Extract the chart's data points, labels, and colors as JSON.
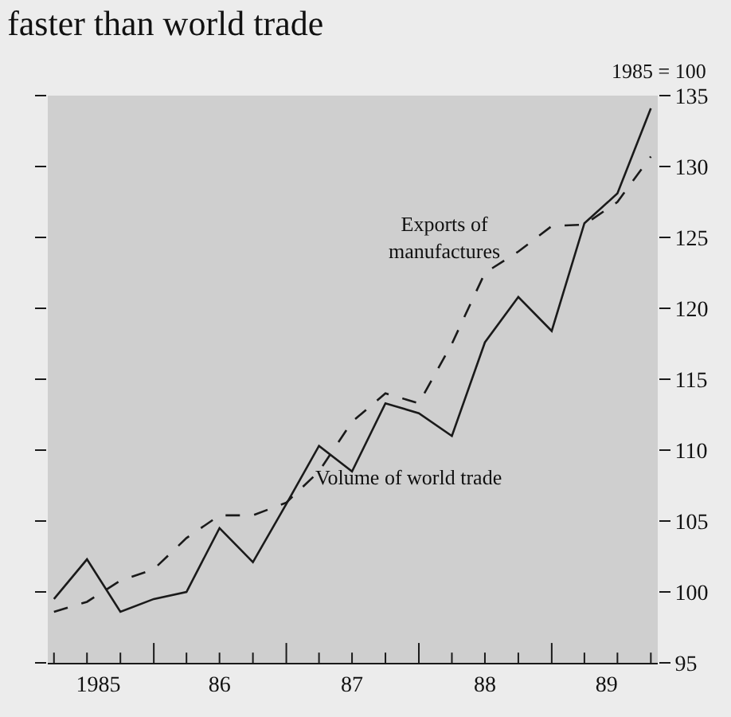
{
  "chart_data": {
    "type": "line",
    "title": "faster than world trade",
    "subtitle": "1985 = 100",
    "x": [
      "1985-04",
      "1985-07",
      "1985-10",
      "1986-01",
      "1986-04",
      "1986-07",
      "1986-10",
      "1987-01",
      "1987-04",
      "1987-07",
      "1987-10",
      "1988-01",
      "1988-04",
      "1988-07",
      "1988-10",
      "1989-01",
      "1989-04",
      "1989-07",
      "1989-10"
    ],
    "series": [
      {
        "color": "#1a1a1a",
        "line_style": "dashed",
        "values": [
          98.6,
          99.3,
          100.8,
          101.6,
          103.8,
          105.4,
          105.4,
          106.3,
          108.5,
          112.0,
          114.0,
          113.3,
          117.5,
          122.5,
          124.0,
          125.8,
          125.9,
          127.5,
          130.7
        ]
      },
      {
        "color": "#1a1a1a",
        "line_style": "solid",
        "values": [
          99.5,
          102.3,
          98.6,
          99.5,
          100.0,
          104.5,
          102.1,
          106.2,
          110.3,
          108.5,
          113.3,
          112.6,
          111.0,
          117.6,
          120.8,
          118.4,
          126.0,
          128.1,
          134.1
        ]
      }
    ],
    "annotations": [
      "Exports of\nmanufactures",
      "Volume of world trade"
    ],
    "xlim": [
      "1985-03-15",
      "1989-10-20"
    ],
    "ylim": [
      95,
      135
    ],
    "xticks": [
      {
        "value": "1985-04",
        "label": null
      },
      {
        "value": "1985-07",
        "label": null
      },
      {
        "value": "1985-10",
        "label": null
      },
      {
        "value": "1986-01",
        "label": null
      },
      {
        "value": "1986-04",
        "label": null
      },
      {
        "value": "1986-07",
        "label": null
      },
      {
        "value": "1986-10",
        "label": null
      },
      {
        "value": "1987-01",
        "label": null
      },
      {
        "value": "1987-04",
        "label": null
      },
      {
        "value": "1987-07",
        "label": null
      },
      {
        "value": "1987-10",
        "label": null
      },
      {
        "value": "1988-01",
        "label": null
      },
      {
        "value": "1988-04",
        "label": null
      },
      {
        "value": "1988-07",
        "label": null
      },
      {
        "value": "1988-10",
        "label": null
      },
      {
        "value": "1989-01",
        "label": null
      },
      {
        "value": "1989-04",
        "label": null
      },
      {
        "value": "1989-07",
        "label": null
      },
      {
        "value": "1989-10",
        "label": null
      },
      {
        "value": "1985-08",
        "label": "1985"
      },
      {
        "value": "1986-07",
        "label": "86"
      },
      {
        "value": "1987-07",
        "label": "87"
      },
      {
        "value": "1988-07",
        "label": "88"
      },
      {
        "value": "1989-06",
        "label": "89"
      }
    ],
    "yticks": [
      95,
      100,
      105,
      110,
      115,
      120,
      125,
      130,
      135
    ],
    "grid": false
  }
}
